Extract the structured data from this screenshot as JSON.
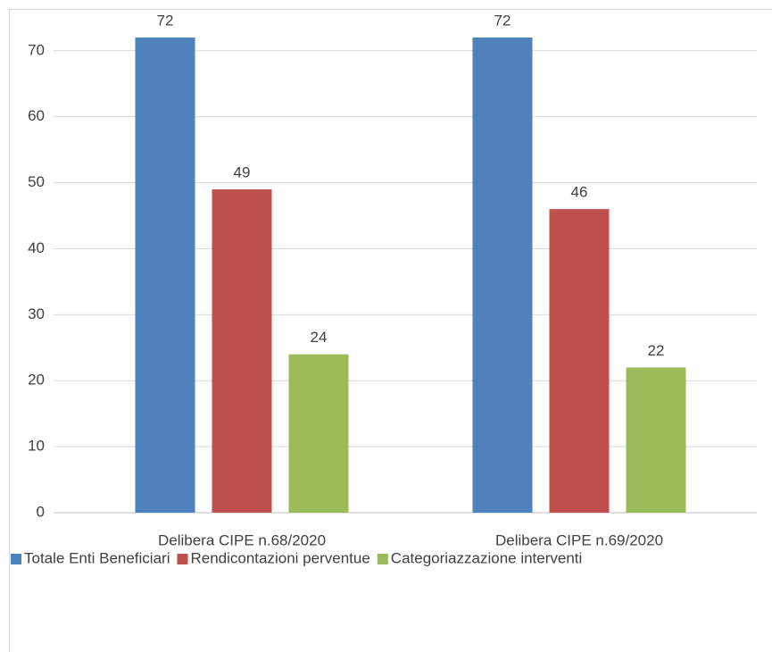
{
  "chart_data": {
    "type": "bar",
    "categories": [
      "Delibera CIPE n.68/2020",
      "Delibera CIPE n.69/2020"
    ],
    "series": [
      {
        "name": "Totale Enti Beneficiari",
        "color": "#4f81bd",
        "values": [
          72,
          72
        ]
      },
      {
        "name": "Rendicontazioni perventue",
        "color": "#c0504d",
        "values": [
          49,
          46
        ]
      },
      {
        "name": "Categoriazzazione interventi",
        "color": "#9bbb59",
        "values": [
          24,
          22
        ]
      }
    ],
    "ylim": [
      0,
      72
    ],
    "yticks": [
      0,
      10,
      20,
      30,
      40,
      50,
      60,
      70
    ],
    "grid": true,
    "legend": "bottom"
  }
}
